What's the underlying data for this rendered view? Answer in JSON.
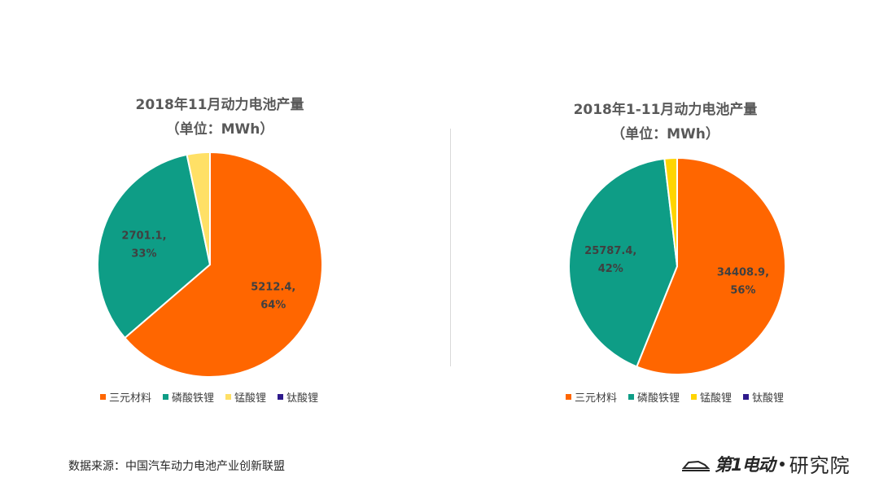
{
  "chart_data": [
    {
      "type": "pie",
      "title": "2018年11月动力电池产量",
      "subtitle": "（单位：MWh）",
      "slices": [
        {
          "label": "三元材料",
          "value": 5212.4,
          "percent": "64%",
          "color": "#ff6600",
          "value_label": "5212.4,"
        },
        {
          "label": "磷酸铁锂",
          "value": 2701.1,
          "percent": "33%",
          "color": "#0e9d86",
          "value_label": "2701.1,"
        },
        {
          "label": "锰酸锂",
          "value": 270,
          "percent": "",
          "color": "#ffe066",
          "value_label": ""
        },
        {
          "label": "钛酸锂",
          "value": 0,
          "percent": "",
          "color": "#2e1a8c",
          "value_label": ""
        }
      ],
      "legend": [
        "三元材料",
        "磷酸铁锂",
        "锰酸锂",
        "钛酸锂"
      ],
      "legend_position": "bottom"
    },
    {
      "type": "pie",
      "title": "2018年1-11月动力电池产量",
      "subtitle": "（单位：MWh）",
      "slices": [
        {
          "label": "三元材料",
          "value": 34408.9,
          "percent": "56%",
          "color": "#ff6600",
          "value_label": "34408.9,"
        },
        {
          "label": "磷酸铁锂",
          "value": 25787.4,
          "percent": "42%",
          "color": "#0e9d86",
          "value_label": "25787.4,"
        },
        {
          "label": "锰酸锂",
          "value": 1150,
          "percent": "",
          "color": "#ffd400",
          "value_label": ""
        },
        {
          "label": "钛酸锂",
          "value": 0,
          "percent": "",
          "color": "#2e1a8c",
          "value_label": ""
        }
      ],
      "legend": [
        "三元材料",
        "磷酸铁锂",
        "锰酸锂",
        "钛酸锂"
      ],
      "legend_position": "bottom"
    }
  ],
  "source_text": "数据来源：中国汽车动力电池产业创新联盟",
  "logo": {
    "brand": "第1电动",
    "dot": "•",
    "text": "研究院"
  }
}
